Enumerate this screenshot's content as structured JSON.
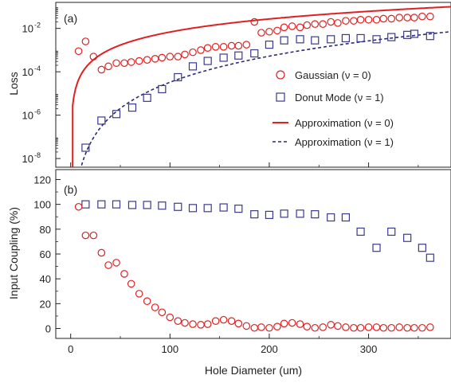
{
  "chart_data": [
    {
      "type": "scatter",
      "panel_label": "(a)",
      "ylabel": "Loss",
      "yscale": "log",
      "xlim": [
        -15,
        383
      ],
      "ylim_exp": [
        -8.4,
        -0.8
      ],
      "yticks": [
        {
          "exp": -8,
          "base": "10",
          "sup": "-8"
        },
        {
          "exp": -6,
          "base": "10",
          "sup": "-6"
        },
        {
          "exp": -4,
          "base": "10",
          "sup": "-4"
        },
        {
          "exp": -2,
          "base": "10",
          "sup": "-2"
        }
      ],
      "series": [
        {
          "name": "Gaussian (ν = 0)",
          "marker": "circle",
          "color": "#e02020",
          "points": [
            [
              8,
              -3.05
            ],
            [
              15,
              -2.6
            ],
            [
              23,
              -3.3
            ],
            [
              31,
              -3.9
            ],
            [
              38,
              -3.75
            ],
            [
              46,
              -3.6
            ],
            [
              54,
              -3.6
            ],
            [
              61,
              -3.55
            ],
            [
              69,
              -3.5
            ],
            [
              77,
              -3.45
            ],
            [
              85,
              -3.4
            ],
            [
              92,
              -3.35
            ],
            [
              100,
              -3.3
            ],
            [
              108,
              -3.3
            ],
            [
              115,
              -3.2
            ],
            [
              123,
              -3.1
            ],
            [
              131,
              -3.0
            ],
            [
              138,
              -2.9
            ],
            [
              146,
              -2.85
            ],
            [
              154,
              -2.85
            ],
            [
              162,
              -2.8
            ],
            [
              169,
              -2.8
            ],
            [
              177,
              -2.75
            ],
            [
              185,
              -1.7
            ],
            [
              192,
              -2.2
            ],
            [
              200,
              -2.15
            ],
            [
              208,
              -2.1
            ],
            [
              215,
              -1.95
            ],
            [
              223,
              -1.9
            ],
            [
              231,
              -1.95
            ],
            [
              238,
              -1.85
            ],
            [
              246,
              -1.8
            ],
            [
              254,
              -1.8
            ],
            [
              262,
              -1.7
            ],
            [
              269,
              -1.75
            ],
            [
              277,
              -1.65
            ],
            [
              285,
              -1.65
            ],
            [
              292,
              -1.6
            ],
            [
              300,
              -1.6
            ],
            [
              308,
              -1.6
            ],
            [
              315,
              -1.55
            ],
            [
              323,
              -1.55
            ],
            [
              331,
              -1.5
            ],
            [
              339,
              -1.5
            ],
            [
              346,
              -1.5
            ],
            [
              354,
              -1.45
            ],
            [
              362,
              -1.45
            ]
          ]
        },
        {
          "name": "Donut Mode (ν = 1)",
          "marker": "square",
          "color": "#3a3a8c",
          "points": [
            [
              15,
              -7.5
            ],
            [
              31,
              -6.25
            ],
            [
              46,
              -5.95
            ],
            [
              62,
              -5.65
            ],
            [
              77,
              -5.2
            ],
            [
              92,
              -4.8
            ],
            [
              108,
              -4.25
            ],
            [
              123,
              -3.75
            ],
            [
              138,
              -3.5
            ],
            [
              154,
              -3.35
            ],
            [
              169,
              -3.25
            ],
            [
              185,
              -3.15
            ],
            [
              200,
              -2.75
            ],
            [
              215,
              -2.55
            ],
            [
              231,
              -2.5
            ],
            [
              246,
              -2.55
            ],
            [
              262,
              -2.5
            ],
            [
              277,
              -2.45
            ],
            [
              292,
              -2.45
            ],
            [
              308,
              -2.5
            ],
            [
              323,
              -2.4
            ],
            [
              339,
              -2.3
            ],
            [
              346,
              -2.25
            ],
            [
              362,
              -2.35
            ]
          ]
        },
        {
          "name": "Approximation (ν = 0)",
          "style": "solid",
          "color": "#e02020"
        },
        {
          "name": "Approximation (ν = 1)",
          "style": "dashed",
          "color": "#2a2a78"
        }
      ],
      "legend": "right"
    },
    {
      "type": "scatter",
      "panel_label": "(b)",
      "ylabel": "Input Coupling (%)",
      "xlabel": "Hole Diameter (um)",
      "xlim": [
        -15,
        383
      ],
      "ylim": [
        -8,
        128
      ],
      "yticks": [
        0,
        20,
        40,
        60,
        80,
        100,
        120
      ],
      "xticks": [
        0,
        100,
        200,
        300
      ],
      "series": [
        {
          "name": "Donut Mode (ν = 1)",
          "marker": "square",
          "color": "#3a3a8c",
          "points": [
            [
              15,
              100
            ],
            [
              31,
              100
            ],
            [
              46,
              100
            ],
            [
              62,
              99.5
            ],
            [
              77,
              99.5
            ],
            [
              92,
              99
            ],
            [
              108,
              98
            ],
            [
              123,
              97
            ],
            [
              138,
              97
            ],
            [
              154,
              97.5
            ],
            [
              169,
              96.5
            ],
            [
              185,
              92
            ],
            [
              200,
              91.5
            ],
            [
              215,
              92.5
            ],
            [
              231,
              92.5
            ],
            [
              246,
              92
            ],
            [
              262,
              89.5
            ],
            [
              277,
              89.5
            ],
            [
              292,
              78
            ],
            [
              308,
              65
            ],
            [
              323,
              78
            ],
            [
              339,
              73
            ],
            [
              354,
              65
            ],
            [
              362,
              57
            ]
          ]
        },
        {
          "name": "Gaussian (ν = 0)",
          "marker": "circle",
          "color": "#e02020",
          "points": [
            [
              8,
              98
            ],
            [
              15,
              75
            ],
            [
              23,
              75
            ],
            [
              31,
              61
            ],
            [
              38,
              51
            ],
            [
              46,
              53
            ],
            [
              54,
              44
            ],
            [
              61,
              36
            ],
            [
              69,
              28
            ],
            [
              77,
              22
            ],
            [
              85,
              17
            ],
            [
              92,
              13
            ],
            [
              100,
              9
            ],
            [
              108,
              6
            ],
            [
              115,
              4.5
            ],
            [
              123,
              3.5
            ],
            [
              131,
              3
            ],
            [
              138,
              3.5
            ],
            [
              146,
              6
            ],
            [
              154,
              7
            ],
            [
              162,
              6
            ],
            [
              169,
              4
            ],
            [
              177,
              2
            ],
            [
              185,
              0.5
            ],
            [
              192,
              1
            ],
            [
              200,
              0.5
            ],
            [
              208,
              1.5
            ],
            [
              215,
              4
            ],
            [
              223,
              4.5
            ],
            [
              231,
              3.5
            ],
            [
              238,
              1.5
            ],
            [
              246,
              0.5
            ],
            [
              254,
              1
            ],
            [
              262,
              3
            ],
            [
              269,
              2
            ],
            [
              277,
              1
            ],
            [
              285,
              0.5
            ],
            [
              292,
              0.5
            ],
            [
              300,
              1
            ],
            [
              308,
              1
            ],
            [
              315,
              0.5
            ],
            [
              323,
              0.5
            ],
            [
              331,
              1
            ],
            [
              339,
              0.5
            ],
            [
              346,
              0.5
            ],
            [
              354,
              0.5
            ],
            [
              362,
              1
            ]
          ]
        }
      ]
    }
  ]
}
